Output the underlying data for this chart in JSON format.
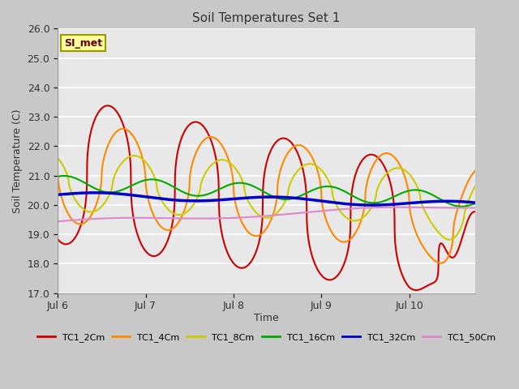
{
  "title": "Soil Temperatures Set 1",
  "ylabel": "Soil Temperature (C)",
  "xlabel": "Time",
  "ylim": [
    17.0,
    26.0
  ],
  "yticks": [
    17.0,
    18.0,
    19.0,
    20.0,
    21.0,
    22.0,
    23.0,
    24.0,
    25.0,
    26.0
  ],
  "x_tick_positions": [
    0,
    24,
    48,
    72,
    96
  ],
  "x_tick_labels": [
    "Jul 6",
    "Jul 7",
    "Jul 8",
    "Jul 9",
    "Jul 10"
  ],
  "xlim": [
    0,
    114
  ],
  "fig_bg_color": "#c8c8c8",
  "plot_bg_color": "#e8e8e8",
  "grid_color": "#ffffff",
  "annotation_text": "SI_met",
  "series": [
    {
      "label": "TC1_2Cm",
      "color": "#cc0000",
      "lw": 1.5
    },
    {
      "label": "TC1_4Cm",
      "color": "#ff8800",
      "lw": 1.5
    },
    {
      "label": "TC1_8Cm",
      "color": "#cccc00",
      "lw": 1.5
    },
    {
      "label": "TC1_16Cm",
      "color": "#00aa00",
      "lw": 1.5
    },
    {
      "label": "TC1_32Cm",
      "color": "#0000cc",
      "lw": 2.5
    },
    {
      "label": "TC1_50Cm",
      "color": "#dd88cc",
      "lw": 1.5
    }
  ]
}
